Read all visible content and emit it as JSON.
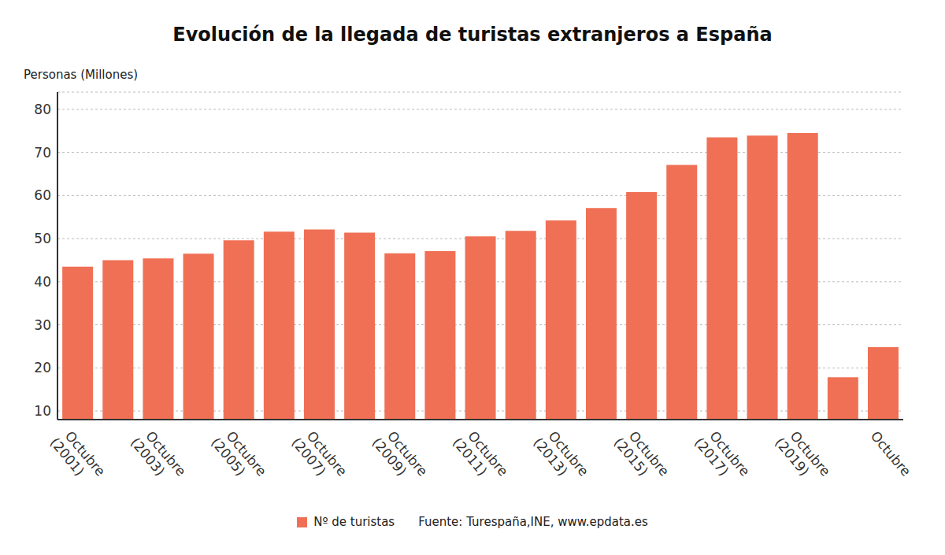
{
  "chart_data": {
    "type": "bar",
    "title": "Evolución de la llegada de turistas extranjeros a España",
    "ylabel": "Personas (Millones)",
    "source": "Fuente: Turespaña,INE, www.epdata.es",
    "categories": [
      "Octubre (2001)",
      null,
      "Octubre (2003)",
      null,
      "Octubre (2005)",
      null,
      "Octubre (2007)",
      null,
      "Octubre (2009)",
      null,
      "Octubre (2011)",
      null,
      "Octubre (2013)",
      null,
      "Octubre (2015)",
      null,
      "Octubre (2017)",
      null,
      "Octubre (2019)",
      null,
      "Octubre"
    ],
    "series": [
      {
        "name": "Nº de turistas",
        "color": "#f07055",
        "values": [
          43.5,
          45.0,
          45.4,
          46.5,
          49.6,
          51.6,
          52.1,
          51.4,
          46.6,
          47.1,
          50.5,
          51.8,
          54.2,
          57.1,
          60.8,
          67.1,
          73.5,
          73.9,
          74.5,
          17.8,
          24.8
        ]
      }
    ],
    "ylim": [
      8,
      84
    ],
    "yticks": [
      10,
      20,
      30,
      40,
      50,
      60,
      70,
      80
    ],
    "grid": true,
    "legend": "bottom"
  }
}
